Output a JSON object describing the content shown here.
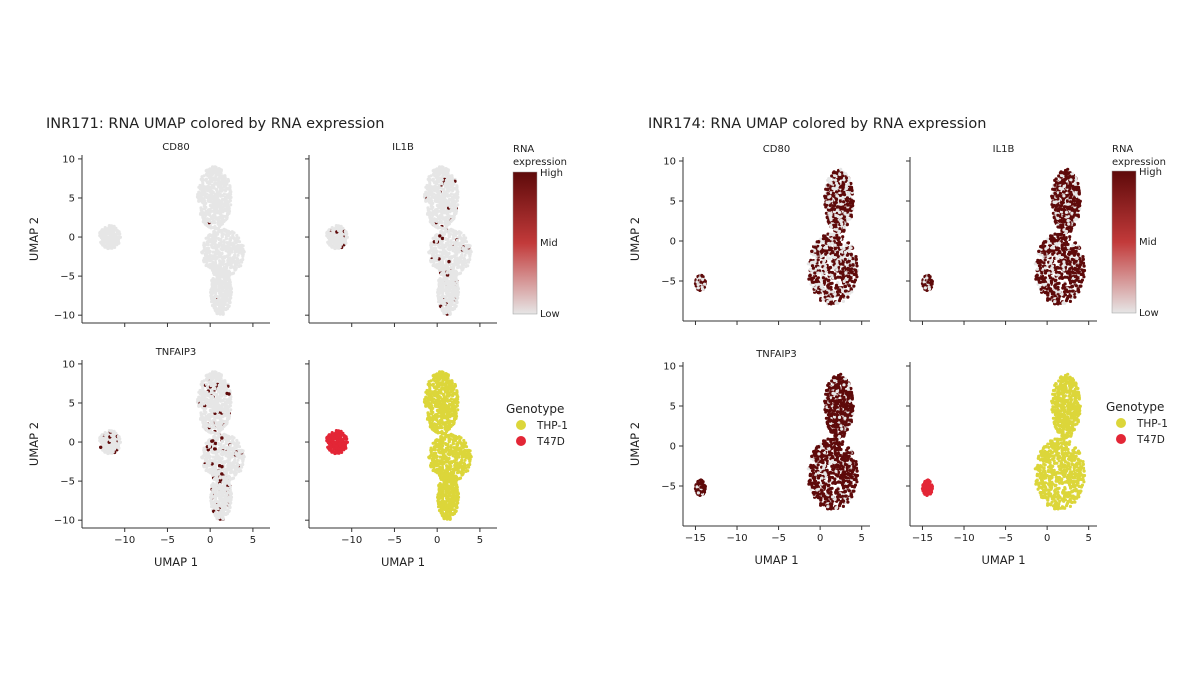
{
  "figures": [
    {
      "title": "INR171: RNA UMAP colored by RNA expression",
      "xlabel": "UMAP 1",
      "ylabel": "UMAP 2"
    },
    {
      "title": "INR174: RNA UMAP colored by RNA expression",
      "xlabel": "UMAP 1",
      "ylabel": "UMAP 2"
    }
  ],
  "colorbar": {
    "label_line1": "RNA",
    "label_line2": "expression",
    "high": "High",
    "mid": "Mid",
    "low": "Low",
    "high_color": "#5e0a0a",
    "low_color": "#e6e6e6"
  },
  "legend": {
    "title": "Genotype",
    "items": [
      {
        "label": "THP-1",
        "color": "#dcd63a"
      },
      {
        "label": "T47D",
        "color": "#e32636"
      }
    ]
  },
  "chart_data": [
    {
      "type": "scatter",
      "figure": "INR171",
      "xlim": [
        -15,
        7
      ],
      "ylim": [
        -11,
        10.5
      ],
      "xticks": [
        -10,
        -5,
        0,
        5
      ],
      "yticks": [
        -10,
        -5,
        0,
        5,
        10
      ],
      "panels": [
        {
          "title": "CD80",
          "kind": "expression",
          "expressed_fraction": 0.002
        },
        {
          "title": "IL1B",
          "kind": "expression",
          "expressed_fraction": 0.03
        },
        {
          "title": "TNFAIP3",
          "kind": "expression",
          "expressed_fraction": 0.06
        },
        {
          "title": "",
          "kind": "genotype"
        }
      ],
      "clusters": [
        {
          "genotype": "T47D",
          "x": [
            -13,
            -10.5
          ],
          "y": [
            -1.5,
            1.5
          ]
        },
        {
          "genotype": "THP-1",
          "x": [
            -1.5,
            2.5
          ],
          "y": [
            1,
            9
          ]
        },
        {
          "genotype": "THP-1",
          "x": [
            -1,
            4
          ],
          "y": [
            -5,
            1
          ]
        },
        {
          "genotype": "THP-1",
          "x": [
            0,
            2.5
          ],
          "y": [
            -10,
            -4
          ]
        }
      ]
    },
    {
      "type": "scatter",
      "figure": "INR174",
      "xlim": [
        -16.5,
        6
      ],
      "ylim": [
        -10,
        10.5
      ],
      "xticks": [
        -15,
        -10,
        -5,
        0,
        5
      ],
      "yticks": [
        -5,
        0,
        5,
        10
      ],
      "panels": [
        {
          "title": "CD80",
          "kind": "expression",
          "expressed_fraction": 0.55
        },
        {
          "title": "IL1B",
          "kind": "expression",
          "expressed_fraction": 0.7
        },
        {
          "title": "TNFAIP3",
          "kind": "expression",
          "expressed_fraction": 0.8
        },
        {
          "title": "",
          "kind": "genotype"
        }
      ],
      "clusters": [
        {
          "genotype": "T47D",
          "x": [
            -15,
            -13.8
          ],
          "y": [
            -6.2,
            -4.2
          ]
        },
        {
          "genotype": "THP-1",
          "x": [
            0.5,
            4
          ],
          "y": [
            1,
            9
          ]
        },
        {
          "genotype": "THP-1",
          "x": [
            -1.5,
            4.5
          ],
          "y": [
            -8,
            1
          ]
        }
      ]
    }
  ]
}
